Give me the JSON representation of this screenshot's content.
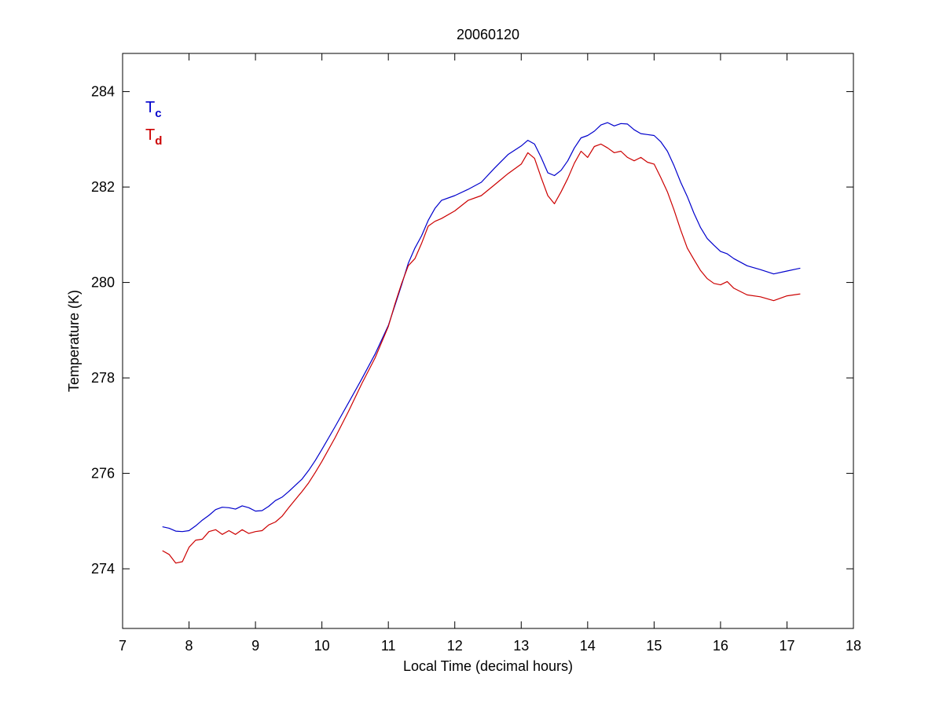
{
  "chart_data": {
    "type": "line",
    "title": "20060120",
    "xlabel": "Local Time (decimal hours)",
    "ylabel": "Temperature (K)",
    "xlim": [
      7,
      18
    ],
    "ylim": [
      272.75,
      284.8
    ],
    "xticks": [
      7,
      8,
      9,
      10,
      11,
      12,
      13,
      14,
      15,
      16,
      17,
      18
    ],
    "yticks": [
      274,
      276,
      278,
      280,
      282,
      284
    ],
    "grid": false,
    "legend_placement": "top-left",
    "series": [
      {
        "name": "T",
        "subscript": "c",
        "color": "#0000cc",
        "x": [
          7.6,
          7.7,
          7.8,
          7.9,
          8.0,
          8.1,
          8.2,
          8.3,
          8.4,
          8.5,
          8.6,
          8.7,
          8.8,
          8.9,
          9.0,
          9.1,
          9.2,
          9.3,
          9.4,
          9.5,
          9.6,
          9.7,
          9.8,
          9.9,
          10.0,
          10.2,
          10.4,
          10.6,
          10.8,
          11.0,
          11.1,
          11.2,
          11.3,
          11.4,
          11.5,
          11.6,
          11.7,
          11.8,
          12.0,
          12.2,
          12.4,
          12.6,
          12.8,
          13.0,
          13.1,
          13.2,
          13.3,
          13.4,
          13.5,
          13.6,
          13.7,
          13.8,
          13.9,
          14.0,
          14.1,
          14.2,
          14.3,
          14.4,
          14.5,
          14.6,
          14.7,
          14.8,
          14.9,
          15.0,
          15.1,
          15.2,
          15.3,
          15.4,
          15.5,
          15.6,
          15.7,
          15.8,
          15.9,
          16.0,
          16.1,
          16.2,
          16.4,
          16.6,
          16.8,
          17.0,
          17.2
        ],
        "y": [
          274.88,
          274.85,
          274.79,
          274.78,
          274.8,
          274.9,
          275.02,
          275.12,
          275.24,
          275.29,
          275.28,
          275.25,
          275.32,
          275.28,
          275.21,
          275.22,
          275.31,
          275.43,
          275.5,
          275.62,
          275.75,
          275.88,
          276.06,
          276.27,
          276.5,
          276.98,
          277.48,
          277.98,
          278.5,
          279.1,
          279.52,
          279.95,
          280.4,
          280.72,
          280.98,
          281.3,
          281.55,
          281.72,
          281.82,
          281.95,
          282.1,
          282.4,
          282.68,
          282.86,
          282.98,
          282.9,
          282.62,
          282.3,
          282.24,
          282.35,
          282.55,
          282.82,
          283.03,
          283.08,
          283.17,
          283.3,
          283.35,
          283.28,
          283.33,
          283.32,
          283.2,
          283.12,
          283.1,
          283.08,
          282.95,
          282.75,
          282.45,
          282.1,
          281.8,
          281.45,
          281.15,
          280.92,
          280.78,
          280.65,
          280.6,
          280.5,
          280.35,
          280.27,
          280.18,
          280.24,
          280.3
        ]
      },
      {
        "name": "T",
        "subscript": "d",
        "color": "#cc0000",
        "x": [
          7.6,
          7.7,
          7.8,
          7.9,
          8.0,
          8.1,
          8.2,
          8.3,
          8.4,
          8.5,
          8.6,
          8.7,
          8.8,
          8.9,
          9.0,
          9.1,
          9.2,
          9.3,
          9.4,
          9.5,
          9.6,
          9.7,
          9.8,
          9.9,
          10.0,
          10.2,
          10.4,
          10.6,
          10.8,
          11.0,
          11.1,
          11.2,
          11.3,
          11.4,
          11.5,
          11.6,
          11.7,
          11.8,
          12.0,
          12.2,
          12.4,
          12.6,
          12.8,
          13.0,
          13.1,
          13.2,
          13.3,
          13.4,
          13.5,
          13.6,
          13.7,
          13.8,
          13.9,
          14.0,
          14.1,
          14.2,
          14.3,
          14.4,
          14.5,
          14.6,
          14.7,
          14.8,
          14.9,
          15.0,
          15.1,
          15.2,
          15.3,
          15.4,
          15.5,
          15.6,
          15.7,
          15.8,
          15.9,
          16.0,
          16.1,
          16.2,
          16.4,
          16.6,
          16.8,
          17.0,
          17.2
        ],
        "y": [
          274.38,
          274.3,
          274.12,
          274.15,
          274.45,
          274.6,
          274.62,
          274.78,
          274.82,
          274.72,
          274.8,
          274.72,
          274.82,
          274.74,
          274.78,
          274.8,
          274.92,
          274.98,
          275.1,
          275.28,
          275.45,
          275.62,
          275.8,
          276.02,
          276.25,
          276.75,
          277.3,
          277.88,
          278.42,
          279.08,
          279.55,
          279.98,
          280.35,
          280.5,
          280.82,
          281.18,
          281.28,
          281.34,
          281.5,
          281.72,
          281.82,
          282.05,
          282.28,
          282.48,
          282.72,
          282.6,
          282.2,
          281.82,
          281.65,
          281.9,
          282.18,
          282.5,
          282.75,
          282.62,
          282.85,
          282.9,
          282.82,
          282.72,
          282.75,
          282.62,
          282.55,
          282.62,
          282.52,
          282.48,
          282.2,
          281.9,
          281.52,
          281.1,
          280.72,
          280.48,
          280.25,
          280.08,
          279.98,
          279.95,
          280.02,
          279.88,
          279.74,
          279.7,
          279.62,
          279.72,
          279.76
        ]
      }
    ]
  }
}
